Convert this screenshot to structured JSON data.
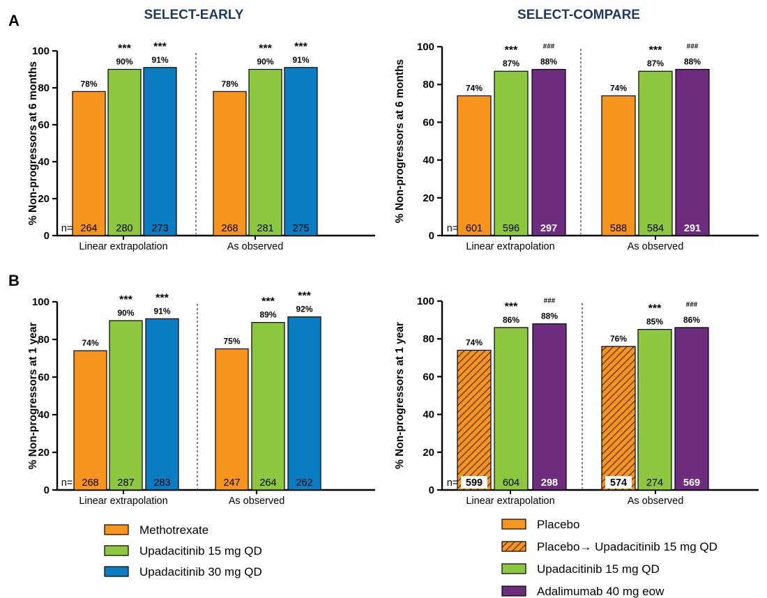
{
  "figure": {
    "panel_letters": [
      "A",
      "B"
    ],
    "titles": [
      "SELECT-EARLY",
      "SELECT-COMPARE"
    ]
  },
  "chart_data": [
    {
      "id": "early_6m",
      "type": "bar",
      "title": "SELECT-EARLY",
      "ylabel": "% Non-progressors at 6 months",
      "ylim": [
        0,
        100
      ],
      "yticks": [
        "0",
        "20",
        "40",
        "60",
        "80",
        "100"
      ],
      "n_prefix": "n=",
      "groups": [
        {
          "label": "Linear extrapolation",
          "bars": [
            {
              "series": "Methotrexate",
              "value": 78,
              "pct_label": "78%",
              "n": "264",
              "sig": ""
            },
            {
              "series": "Upadacitinib 15 mg QD",
              "value": 90,
              "pct_label": "90%",
              "n": "280",
              "sig": "***"
            },
            {
              "series": "Upadacitinib 30 mg QD",
              "value": 91,
              "pct_label": "91%",
              "n": "273",
              "sig": "***"
            }
          ]
        },
        {
          "label": "As observed",
          "bars": [
            {
              "series": "Methotrexate",
              "value": 78,
              "pct_label": "78%",
              "n": "268",
              "sig": ""
            },
            {
              "series": "Upadacitinib 15 mg QD",
              "value": 90,
              "pct_label": "90%",
              "n": "281",
              "sig": "***"
            },
            {
              "series": "Upadacitinib 30 mg QD",
              "value": 91,
              "pct_label": "91%",
              "n": "275",
              "sig": "***"
            }
          ]
        }
      ]
    },
    {
      "id": "compare_6m",
      "type": "bar",
      "title": "SELECT-COMPARE",
      "ylabel": "% Non-progressors at 6 months",
      "ylim": [
        0,
        100
      ],
      "yticks": [
        "0",
        "20",
        "40",
        "60",
        "80",
        "100"
      ],
      "n_prefix": "n=",
      "groups": [
        {
          "label": "Linear extrapolation",
          "bars": [
            {
              "series": "Placebo",
              "value": 74,
              "pct_label": "74%",
              "n": "601",
              "sig": ""
            },
            {
              "series": "Upadacitinib 15 mg QD",
              "value": 87,
              "pct_label": "87%",
              "n": "596",
              "sig": "***"
            },
            {
              "series": "Adalimumab 40 mg eow",
              "value": 88,
              "pct_label": "88%",
              "n": "297",
              "sig": "###"
            }
          ]
        },
        {
          "label": "As observed",
          "bars": [
            {
              "series": "Placebo",
              "value": 74,
              "pct_label": "74%",
              "n": "588",
              "sig": ""
            },
            {
              "series": "Upadacitinib 15 mg QD",
              "value": 87,
              "pct_label": "87%",
              "n": "584",
              "sig": "***"
            },
            {
              "series": "Adalimumab 40 mg eow",
              "value": 88,
              "pct_label": "88%",
              "n": "291",
              "sig": "###"
            }
          ]
        }
      ]
    },
    {
      "id": "early_1y",
      "type": "bar",
      "ylabel": "% Non-progressors at 1 year",
      "ylim": [
        0,
        100
      ],
      "yticks": [
        "0",
        "20",
        "40",
        "60",
        "80",
        "100"
      ],
      "n_prefix": "n=",
      "groups": [
        {
          "label": "Linear extrapolation",
          "bars": [
            {
              "series": "Methotrexate",
              "value": 74,
              "pct_label": "74%",
              "n": "268",
              "sig": ""
            },
            {
              "series": "Upadacitinib 15 mg QD",
              "value": 90,
              "pct_label": "90%",
              "n": "287",
              "sig": "***"
            },
            {
              "series": "Upadacitinib 30 mg QD",
              "value": 91,
              "pct_label": "91%",
              "n": "283",
              "sig": "***"
            }
          ]
        },
        {
          "label": "As observed",
          "bars": [
            {
              "series": "Methotrexate",
              "value": 75,
              "pct_label": "75%",
              "n": "247",
              "sig": ""
            },
            {
              "series": "Upadacitinib 15 mg QD",
              "value": 89,
              "pct_label": "89%",
              "n": "264",
              "sig": "***"
            },
            {
              "series": "Upadacitinib 30 mg QD",
              "value": 92,
              "pct_label": "92%",
              "n": "262",
              "sig": "***"
            }
          ]
        }
      ]
    },
    {
      "id": "compare_1y",
      "type": "bar",
      "ylabel": "% Non-progressors at 1 year",
      "ylim": [
        0,
        100
      ],
      "yticks": [
        "0",
        "20",
        "40",
        "60",
        "80",
        "100"
      ],
      "n_prefix": "n=",
      "groups": [
        {
          "label": "Linear extrapolation",
          "bars": [
            {
              "series": "Placebo→ Upadacitinib 15 mg QD",
              "value": 74,
              "pct_label": "74%",
              "n": "599",
              "sig": ""
            },
            {
              "series": "Upadacitinib 15 mg QD",
              "value": 86,
              "pct_label": "86%",
              "n": "604",
              "sig": "***"
            },
            {
              "series": "Adalimumab 40 mg eow",
              "value": 88,
              "pct_label": "88%",
              "n": "298",
              "sig": "###"
            }
          ]
        },
        {
          "label": "As observed",
          "bars": [
            {
              "series": "Placebo→ Upadacitinib 15 mg QD",
              "value": 76,
              "pct_label": "76%",
              "n": "574",
              "sig": ""
            },
            {
              "series": "Upadacitinib 15 mg QD",
              "value": 85,
              "pct_label": "85%",
              "n": "274",
              "sig": "***"
            },
            {
              "series": "Adalimumab 40 mg eow",
              "value": 86,
              "pct_label": "86%",
              "n": "569",
              "sig": "###"
            }
          ]
        }
      ]
    }
  ],
  "series_styles": {
    "Methotrexate": {
      "color": "#f7941d",
      "pattern": "solid",
      "n_text_color": "#000000"
    },
    "Placebo": {
      "color": "#f7941d",
      "pattern": "solid",
      "n_text_color": "#000000"
    },
    "Placebo→ Upadacitinib 15 mg QD": {
      "color": "#f7941d",
      "pattern": "hatch",
      "n_text_color": "#000000"
    },
    "Upadacitinib 15 mg QD": {
      "color": "#8dc63f",
      "pattern": "solid",
      "n_text_color": "#000000"
    },
    "Upadacitinib 30 mg QD": {
      "color": "#0a7cc1",
      "pattern": "solid",
      "n_text_color": "#000000"
    },
    "Adalimumab 40 mg eow": {
      "color": "#6d2c7e",
      "pattern": "solid",
      "n_text_color": "#ffffff"
    }
  },
  "legends": {
    "early": [
      "Methotrexate",
      "Upadacitinib 15 mg QD",
      "Upadacitinib 30 mg QD"
    ],
    "compare": [
      "Placebo",
      "Placebo→ Upadacitinib 15 mg QD",
      "Upadacitinib 15 mg QD",
      "Adalimumab 40 mg eow"
    ]
  }
}
